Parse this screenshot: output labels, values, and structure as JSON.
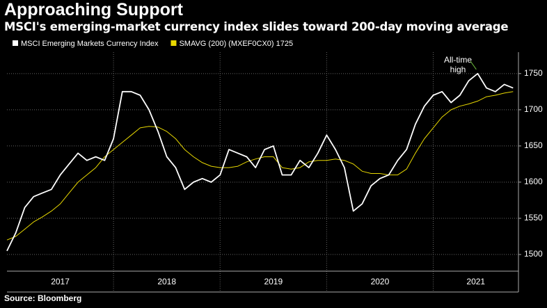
{
  "chart_data": {
    "type": "line",
    "title": "Approaching Support",
    "subtitle": "MSCI's emerging-market currency index slides toward 200-day moving average",
    "source": "Source: Bloomberg",
    "annotation": {
      "text": [
        "All-time",
        "high"
      ],
      "x": 2021.417,
      "y": 1750,
      "color": "#6fbf3f"
    },
    "x": [
      2017.0,
      2017.083,
      2017.167,
      2017.25,
      2017.333,
      2017.417,
      2017.5,
      2017.583,
      2017.667,
      2017.75,
      2017.833,
      2017.917,
      2018.0,
      2018.083,
      2018.167,
      2018.25,
      2018.333,
      2018.417,
      2018.5,
      2018.583,
      2018.667,
      2018.75,
      2018.833,
      2018.917,
      2019.0,
      2019.083,
      2019.167,
      2019.25,
      2019.333,
      2019.417,
      2019.5,
      2019.583,
      2019.667,
      2019.75,
      2019.833,
      2019.917,
      2020.0,
      2020.083,
      2020.167,
      2020.25,
      2020.333,
      2020.417,
      2020.5,
      2020.583,
      2020.667,
      2020.75,
      2020.833,
      2020.917,
      2021.0,
      2021.083,
      2021.167,
      2021.25,
      2021.333,
      2021.417,
      2021.5,
      2021.583,
      2021.667,
      2021.75
    ],
    "series": [
      {
        "name": "MSCI Emerging Markets Currency Index",
        "color": "#ffffff",
        "values": [
          1505,
          1530,
          1565,
          1580,
          1585,
          1590,
          1610,
          1625,
          1640,
          1630,
          1635,
          1630,
          1660,
          1725,
          1725,
          1720,
          1700,
          1670,
          1635,
          1620,
          1590,
          1600,
          1605,
          1600,
          1610,
          1645,
          1640,
          1635,
          1620,
          1645,
          1650,
          1610,
          1610,
          1630,
          1620,
          1640,
          1665,
          1645,
          1620,
          1560,
          1570,
          1595,
          1605,
          1610,
          1630,
          1645,
          1680,
          1705,
          1720,
          1725,
          1710,
          1720,
          1740,
          1750,
          1730,
          1725,
          1735,
          1730
        ]
      },
      {
        "name": "SMAVG (200) (MXEF0CX0) 1725",
        "color": "#e8d800",
        "values": [
          1520,
          1525,
          1535,
          1545,
          1552,
          1560,
          1570,
          1585,
          1600,
          1610,
          1620,
          1635,
          1645,
          1655,
          1665,
          1675,
          1677,
          1676,
          1670,
          1660,
          1645,
          1635,
          1627,
          1622,
          1620,
          1620,
          1622,
          1628,
          1632,
          1635,
          1635,
          1620,
          1618,
          1620,
          1628,
          1630,
          1630,
          1632,
          1630,
          1625,
          1615,
          1612,
          1612,
          1610,
          1610,
          1618,
          1640,
          1660,
          1675,
          1690,
          1700,
          1705,
          1708,
          1712,
          1718,
          1720,
          1723,
          1725
        ]
      }
    ],
    "xlim": [
      2017,
      2021.8
    ],
    "xticks": [
      2017,
      2018,
      2019,
      2020,
      2021
    ],
    "ylim": [
      1477,
      1770
    ],
    "yticks": [
      1500,
      1550,
      1600,
      1650,
      1700,
      1750
    ],
    "grid": true
  }
}
